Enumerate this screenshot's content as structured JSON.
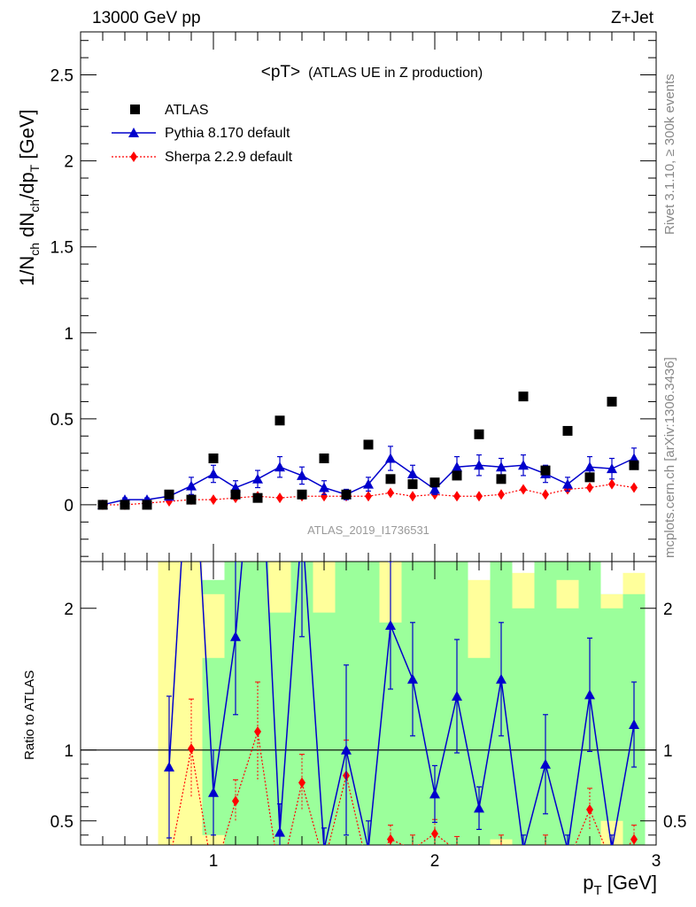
{
  "header": {
    "left": "13000 GeV pp",
    "right": "Z+Jet"
  },
  "side": {
    "rivet": "Rivet 3.1.10, ≥ 300k events",
    "mcplots": "mcplots.cern.ch [arXiv:1306.3436]"
  },
  "plot_title": {
    "main": "<pT>",
    "sub": "(ATLAS UE in Z production)"
  },
  "watermark": "ATLAS_2019_I1736531",
  "chart_data": [
    {
      "type": "scatter",
      "title": "<pT> (ATLAS UE in Z production)",
      "ylabel_main": "1/N",
      "ylabel_sub1": "ch",
      "ylabel_mid": " dN",
      "ylabel_sub2": "ch",
      "ylabel_mid2": "/dp",
      "ylabel_sub3": "T",
      "ylabel_unit": " [GeV]",
      "xlim": [
        0.4,
        3.0
      ],
      "ylim": [
        -0.33,
        2.75
      ],
      "x_ticks": [
        "1",
        "2",
        "3"
      ],
      "y_ticks": [
        "0",
        "0.5",
        "1",
        "1.5",
        "2",
        "2.5"
      ],
      "x": [
        0.5,
        0.6,
        0.7,
        0.8,
        0.9,
        1.0,
        1.1,
        1.2,
        1.3,
        1.4,
        1.5,
        1.6,
        1.7,
        1.8,
        1.9,
        2.0,
        2.1,
        2.2,
        2.3,
        2.4,
        2.5,
        2.6,
        2.7,
        2.8,
        2.9
      ],
      "series": [
        {
          "name": "ATLAS",
          "color": "#000000",
          "marker": "square",
          "values": [
            0.0,
            0.0,
            0.0,
            0.06,
            0.03,
            0.27,
            0.06,
            0.04,
            0.49,
            0.06,
            0.27,
            0.06,
            0.35,
            0.15,
            0.12,
            0.13,
            0.17,
            0.41,
            0.15,
            0.63,
            0.2,
            0.43,
            0.16,
            0.6,
            0.23
          ]
        },
        {
          "name": "Pythia 8.170 default",
          "color": "#0000cc",
          "marker": "triangle",
          "values": [
            0.0,
            0.03,
            0.03,
            0.05,
            0.11,
            0.18,
            0.1,
            0.15,
            0.22,
            0.17,
            0.1,
            0.06,
            0.12,
            0.27,
            0.18,
            0.09,
            0.22,
            0.23,
            0.22,
            0.23,
            0.18,
            0.12,
            0.22,
            0.21,
            0.27
          ],
          "errors": [
            0.0,
            0.01,
            0.01,
            0.02,
            0.05,
            0.05,
            0.04,
            0.05,
            0.06,
            0.05,
            0.04,
            0.03,
            0.04,
            0.07,
            0.05,
            0.03,
            0.06,
            0.06,
            0.05,
            0.06,
            0.05,
            0.04,
            0.06,
            0.06,
            0.06
          ]
        },
        {
          "name": "Sherpa 2.2.9 default",
          "color": "#ff0000",
          "marker": "diamond",
          "values": [
            0.0,
            0.0,
            0.01,
            0.02,
            0.03,
            0.03,
            0.04,
            0.05,
            0.04,
            0.05,
            0.05,
            0.05,
            0.05,
            0.07,
            0.05,
            0.06,
            0.05,
            0.05,
            0.06,
            0.09,
            0.06,
            0.09,
            0.1,
            0.12,
            0.1
          ],
          "errors": [
            0.0,
            0.0,
            0.005,
            0.005,
            0.01,
            0.01,
            0.01,
            0.01,
            0.01,
            0.01,
            0.01,
            0.01,
            0.01,
            0.015,
            0.01,
            0.01,
            0.01,
            0.01,
            0.01,
            0.015,
            0.01,
            0.015,
            0.015,
            0.02,
            0.015
          ]
        }
      ]
    },
    {
      "type": "line",
      "ylabel": "Ratio to ATLAS",
      "xlabel_main": "p",
      "xlabel_sub": "T",
      "xlabel_unit": " [GeV]",
      "xlim": [
        0.4,
        3.0
      ],
      "ylim": [
        0.33,
        2.33
      ],
      "x_ticks": [
        "1",
        "2",
        "3"
      ],
      "y_ticks": [
        "0.5",
        "1",
        "2"
      ],
      "reference_line": 1,
      "band_xmin": 0.75,
      "band_xmax": 2.95,
      "bands_yellow": [
        [
          0.75,
          0.85,
          0.33,
          2.33
        ],
        [
          0.85,
          0.95,
          0.33,
          2.33
        ],
        [
          0.95,
          1.05,
          1.65,
          2.1
        ],
        [
          0.95,
          1.05,
          0.33,
          0.4
        ],
        [
          1.25,
          1.35,
          1.97,
          2.33
        ],
        [
          1.45,
          1.55,
          1.97,
          2.33
        ],
        [
          1.75,
          1.85,
          1.9,
          2.33
        ],
        [
          2.15,
          2.25,
          1.65,
          2.33
        ],
        [
          2.25,
          2.35,
          0.33,
          0.37
        ],
        [
          2.35,
          2.45,
          2.0,
          2.33
        ],
        [
          2.75,
          2.85,
          0.33,
          0.5
        ],
        [
          2.75,
          2.85,
          2.0,
          2.1
        ],
        [
          2.85,
          2.95,
          2.1,
          2.33
        ],
        [
          2.55,
          2.65,
          2.0,
          2.2
        ]
      ],
      "series": [
        {
          "name": "Pythia 8.170 default",
          "color": "#0000cc",
          "x": [
            0.8,
            0.9,
            1.0,
            1.1,
            1.2,
            1.3,
            1.4,
            1.5,
            1.6,
            1.7,
            1.8,
            1.9,
            2.0,
            2.1,
            2.2,
            2.3,
            2.4,
            2.5,
            2.6,
            2.7,
            2.8,
            2.9
          ],
          "values": [
            0.88,
            3.5,
            0.7,
            1.8,
            3.6,
            0.42,
            2.6,
            0.3,
            1.0,
            0.3,
            1.88,
            1.5,
            0.69,
            1.38,
            0.59,
            1.5,
            0.3,
            0.9,
            0.3,
            1.39,
            0.3,
            1.18
          ],
          "errors": [
            0.5,
            0.8,
            0.3,
            0.55,
            0.8,
            0.2,
            0.8,
            0.15,
            0.6,
            0.2,
            0.45,
            0.4,
            0.2,
            0.4,
            0.15,
            0.4,
            0.1,
            0.35,
            0.1,
            0.4,
            0.1,
            0.3
          ]
        },
        {
          "name": "Sherpa 2.2.9 default",
          "color": "#ff0000",
          "x": [
            0.8,
            0.9,
            1.0,
            1.1,
            1.2,
            1.3,
            1.4,
            1.5,
            1.6,
            1.7,
            1.8,
            1.9,
            2.0,
            2.1,
            2.2,
            2.3,
            2.4,
            2.5,
            2.6,
            2.7,
            2.8,
            2.9
          ],
          "values": [
            0.2,
            1.01,
            0.1,
            0.64,
            1.13,
            0.08,
            0.77,
            0.2,
            0.82,
            0.15,
            0.37,
            0.3,
            0.41,
            0.29,
            0.12,
            0.3,
            0.14,
            0.3,
            0.2,
            0.58,
            0.2,
            0.37
          ],
          "errors": [
            0.1,
            0.35,
            0.05,
            0.15,
            0.35,
            0.05,
            0.2,
            0.1,
            0.25,
            0.1,
            0.1,
            0.1,
            0.1,
            0.1,
            0.05,
            0.1,
            0.05,
            0.1,
            0.1,
            0.15,
            0.1,
            0.1
          ]
        }
      ]
    }
  ]
}
